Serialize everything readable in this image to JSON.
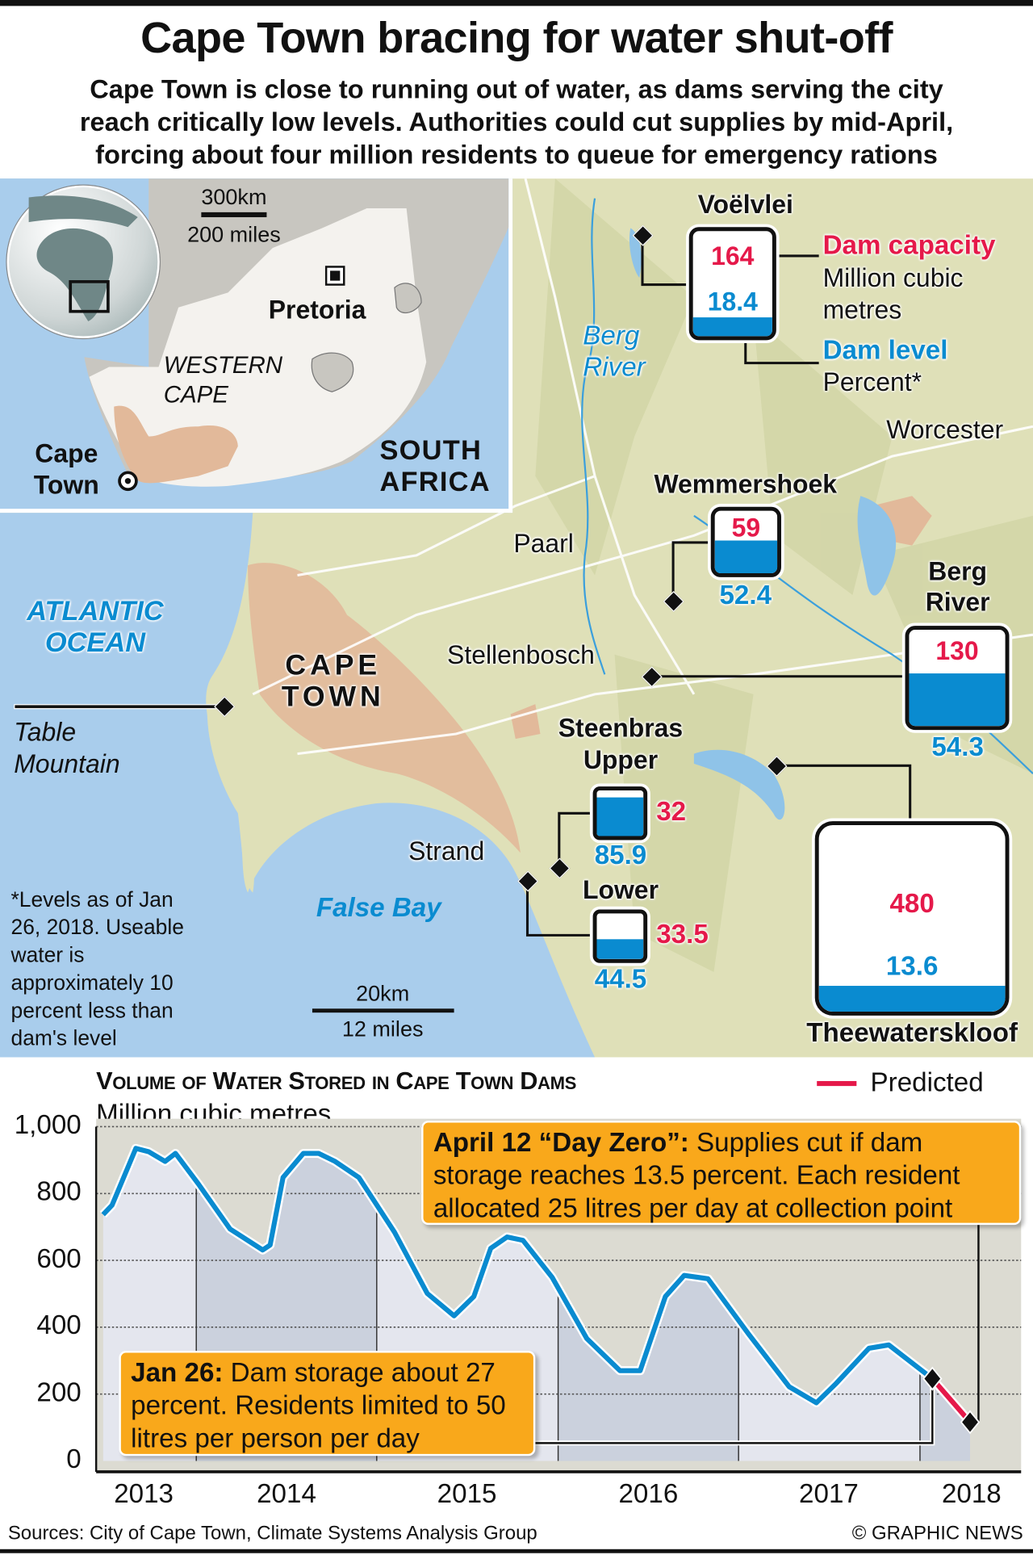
{
  "title": "Cape Town bracing for water shut-off",
  "subtitle": [
    "Cape Town is close to running out of water, as dams serving the city",
    "reach critically low levels. Authorities could cut supplies by mid-April,",
    "forcing about four million residents to queue for emergency rations"
  ],
  "colors": {
    "capacity": "#e5194a",
    "level": "#0a8bd0",
    "predicted": "#e5194a",
    "annotation": "#f9a81b",
    "sea": "#a9cdec",
    "land": "#dfe0b8",
    "urban": "#e2b99a"
  },
  "inset": {
    "scale_km": "300km",
    "scale_miles": "200 miles",
    "pretoria": "Pretoria",
    "western_cape": [
      "WESTERN",
      "CAPE"
    ],
    "cape_town": [
      "Cape",
      "Town"
    ],
    "country": [
      "SOUTH",
      "AFRICA"
    ]
  },
  "map": {
    "berg_river_italic": [
      "Berg",
      "River"
    ],
    "worcester": "Worcester",
    "paarl": "Paarl",
    "stellenbosch": "Stellenbosch",
    "cape_town": [
      "CAPE",
      "TOWN"
    ],
    "ocean": [
      "ATLANTIC",
      "OCEAN"
    ],
    "table_mountain": [
      "Table",
      "Mountain"
    ],
    "strand": "Strand",
    "false_bay": "False Bay",
    "scale_km": "20km",
    "scale_miles": "12 miles",
    "footnote": "*Levels as of Jan 26, 2018. Useable water is approximately 10 percent less than dam's level"
  },
  "legend_key": {
    "capacity_title": "Dam capacity",
    "capacity_unit": [
      "Million cubic",
      "metres"
    ],
    "level_title": "Dam level",
    "level_unit": "Percent*"
  },
  "dams": [
    {
      "name": "Voëlvlei",
      "capacity": "164",
      "level": "18.4",
      "level_pct": 18.4
    },
    {
      "name": "Wemmershoek",
      "capacity": "59",
      "level": "52.4",
      "level_pct": 52.4
    },
    {
      "name": "Berg River",
      "name_lines": [
        "Berg",
        "River"
      ],
      "capacity": "130",
      "level": "54.3",
      "level_pct": 54.3
    },
    {
      "name": "Steenbras Upper",
      "name_lines": [
        "Steenbras",
        "Upper"
      ],
      "capacity": "32",
      "level": "85.9",
      "level_pct": 85.9
    },
    {
      "name": "Steenbras Lower",
      "name_lines": [
        "Lower"
      ],
      "capacity": "33.5",
      "level": "44.5",
      "level_pct": 44.5
    },
    {
      "name": "Theewaterskloof",
      "capacity": "480",
      "level": "13.6",
      "level_pct": 13.6
    }
  ],
  "chart_data": {
    "type": "line",
    "title": "Volume of Water Stored in Cape Town Dams",
    "ylabel": "Million cubic metres",
    "ylim": [
      0,
      1000
    ],
    "yticks": [
      "0",
      "200",
      "400",
      "600",
      "800",
      "1,000"
    ],
    "xticks": [
      "2013",
      "2014",
      "2015",
      "2016",
      "2017",
      "2018"
    ],
    "grid": "horizontal dotted",
    "legend": {
      "label": "Predicted",
      "placement": "top-right"
    },
    "series": [
      {
        "values": [
          [
            "2013-06-27",
            737
          ],
          [
            "2013-07-15",
            765
          ],
          [
            "2013-08-10",
            857
          ],
          [
            "2013-09-01",
            935
          ],
          [
            "2013-09-27",
            925
          ],
          [
            "2013-10-30",
            896
          ],
          [
            "2013-11-20",
            920
          ],
          [
            "2014-01-05",
            829
          ],
          [
            "2014-03-10",
            694
          ],
          [
            "2014-05-15",
            631
          ],
          [
            "2014-05-30",
            646
          ],
          [
            "2014-06-25",
            848
          ],
          [
            "2014-08-05",
            920
          ],
          [
            "2014-09-05",
            920
          ],
          [
            "2014-10-08",
            896
          ],
          [
            "2014-11-25",
            848
          ],
          [
            "2015-02-05",
            684
          ],
          [
            "2015-04-12",
            501
          ],
          [
            "2015-06-05",
            434
          ],
          [
            "2015-07-15",
            492
          ],
          [
            "2015-08-18",
            636
          ],
          [
            "2015-09-20",
            670
          ],
          [
            "2015-10-22",
            660
          ],
          [
            "2015-12-20",
            549
          ],
          [
            "2016-02-28",
            366
          ],
          [
            "2016-05-05",
            270
          ],
          [
            "2016-06-15",
            270
          ],
          [
            "2016-08-05",
            492
          ],
          [
            "2016-09-12",
            555
          ],
          [
            "2016-10-30",
            545
          ],
          [
            "2017-01-22",
            376
          ],
          [
            "2017-04-12",
            222
          ],
          [
            "2017-06-06",
            174
          ],
          [
            "2017-07-16",
            232
          ],
          [
            "2017-09-20",
            337
          ],
          [
            "2017-10-30",
            347
          ],
          [
            "2018-01-26",
            246
          ]
        ]
      },
      {
        "name": "Predicted",
        "values": [
          [
            "2018-01-26",
            246
          ],
          [
            "2018-04-12",
            116
          ]
        ]
      }
    ],
    "annotations": [
      {
        "label": "April 12 “Day Zero”:",
        "text": " Supplies cut if dam storage reaches 13.5 percent. Each resident allocated 25 litres per day at collection point"
      },
      {
        "label": "Jan 26:",
        "text": " Dam storage about 27 percent. Residents limited to 50 litres per person per day"
      }
    ]
  },
  "footer": {
    "sources": "Sources: City of Cape Town, Climate Systems Analysis Group",
    "credit": "© GRAPHIC NEWS"
  }
}
